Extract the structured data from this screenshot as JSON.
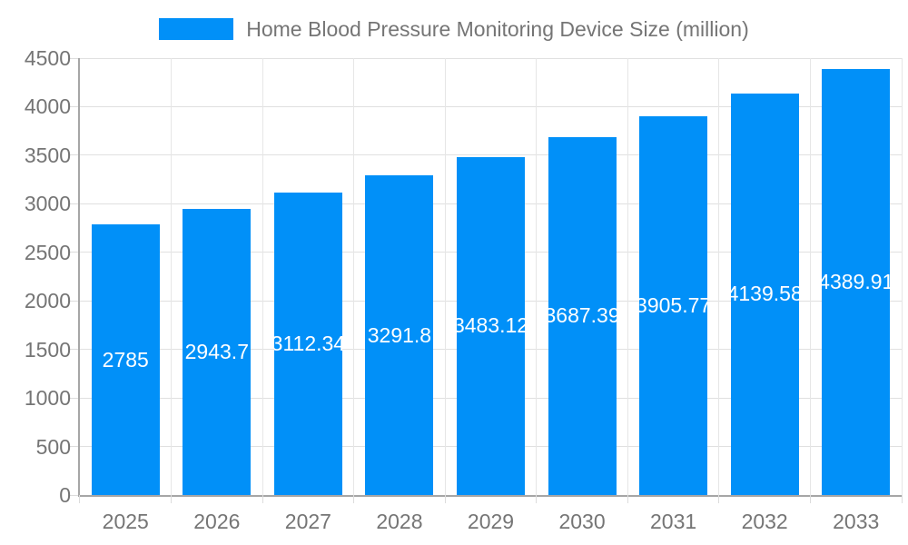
{
  "chart_data": {
    "type": "bar",
    "title": "Home Blood Pressure Monitoring Device Size (million)",
    "legend": {
      "label": "Home Blood Pressure Monitoring Device Size (million)",
      "swatch_color": "#0190f8",
      "position": "top-center"
    },
    "categories": [
      "2025",
      "2026",
      "2027",
      "2028",
      "2029",
      "2030",
      "2031",
      "2032",
      "2033"
    ],
    "values": [
      2785,
      2943.7,
      3112.34,
      3291.8,
      3483.12,
      3687.39,
      3905.77,
      4139.58,
      4389.91
    ],
    "value_labels": [
      "2785",
      "2943.7",
      "3112.34",
      "3291.8",
      "3483.12",
      "3687.39",
      "3905.77",
      "4139.58",
      "4389.91"
    ],
    "xlabel": "",
    "ylabel": "",
    "ylim": [
      0,
      4500
    ],
    "yticks": [
      0,
      500,
      1000,
      1500,
      2000,
      2500,
      3000,
      3500,
      4000,
      4500
    ],
    "grid": "horizontal and vertical light gray",
    "bar_color": "#0190f8",
    "value_label_color": "#ffffff",
    "axis_text_color": "#757575"
  }
}
